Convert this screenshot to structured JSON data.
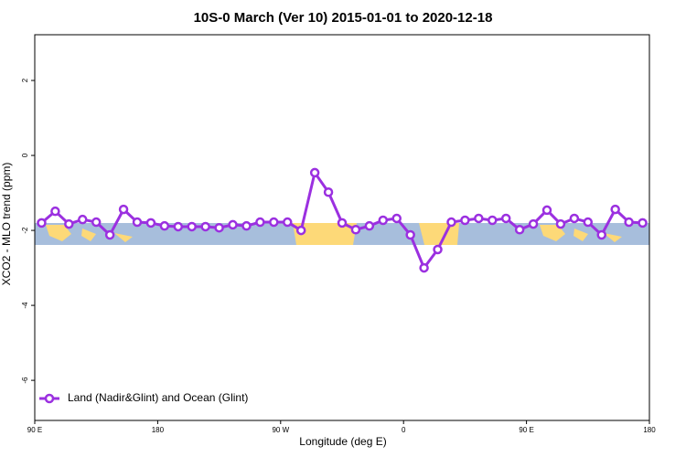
{
  "chart_data": {
    "type": "line",
    "title": "10S-0 March (Ver 10)   2015-01-01 to 2020-12-18",
    "x_label": "Longitude (deg E)",
    "y_label": "XCO2 - MLO trend (ppm)",
    "xlim": [
      90,
      540
    ],
    "xticks": [
      {
        "value": 90,
        "label": "90 E"
      },
      180,
      {
        "value": 270,
        "label": "90 W"
      },
      {
        "value": 360,
        "label": "0"
      },
      {
        "value": 450,
        "label": "90 E"
      },
      {
        "value": 540,
        "label": "180"
      }
    ],
    "ylim": [
      -7.07,
      3.22
    ],
    "yticks": [
      2,
      0,
      -2,
      -4,
      -6
    ],
    "legend_position": "bottom-left",
    "x": [
      95,
      105,
      115,
      125,
      135,
      145,
      155,
      165,
      175,
      185,
      195,
      205,
      215,
      225,
      235,
      245,
      255,
      265,
      275,
      285,
      295,
      305,
      315,
      325,
      335,
      345,
      355,
      365,
      375,
      385,
      395,
      405,
      415,
      425,
      435,
      445,
      455,
      465,
      475,
      485,
      495,
      505,
      515,
      525,
      535
    ],
    "series": [
      {
        "name": "Land (Nadir&Glint) and Ocean (Glint)",
        "color": "#9b30e0",
        "values": [
          -1.8,
          -1.49,
          -1.83,
          -1.71,
          -1.78,
          -2.12,
          -1.44,
          -1.78,
          -1.8,
          -1.88,
          -1.9,
          -1.9,
          -1.9,
          -1.93,
          -1.85,
          -1.88,
          -1.78,
          -1.78,
          -1.78,
          -2.0,
          -0.46,
          -0.98,
          -1.8,
          -1.98,
          -1.88,
          -1.73,
          -1.68,
          -2.12,
          -3.0,
          -2.51,
          -1.78,
          -1.73,
          -1.68,
          -1.73,
          -1.68,
          -1.98,
          -1.83,
          -1.46,
          -1.83,
          -1.68,
          -1.78,
          -2.12,
          -1.44,
          -1.78,
          -1.8
        ]
      }
    ]
  }
}
